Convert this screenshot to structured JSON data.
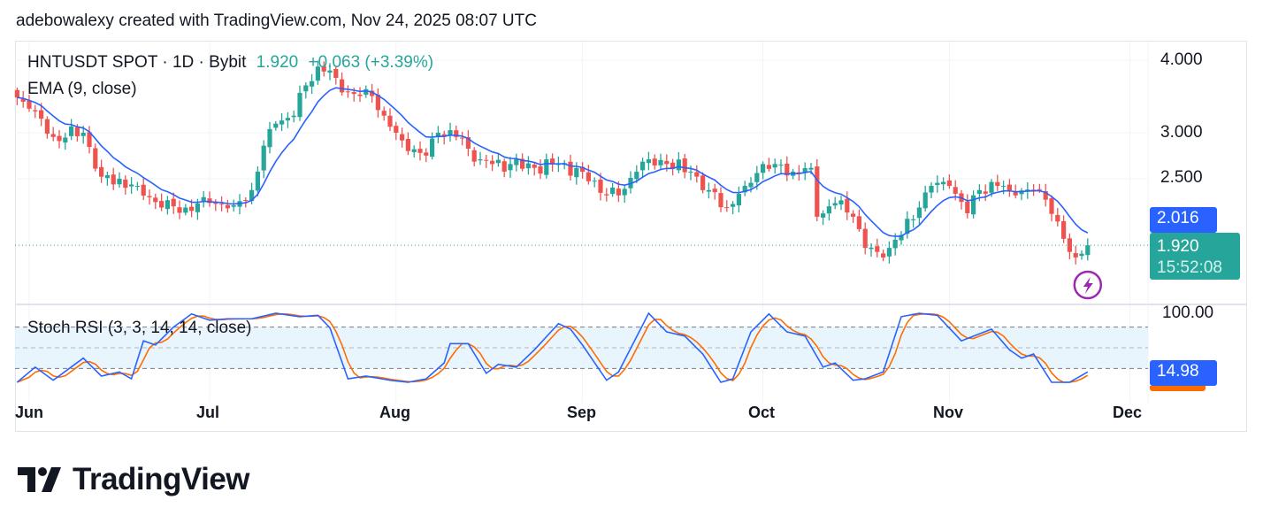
{
  "header": {
    "credit": "adebowalexy created with TradingView.com, Nov 24, 2025 08:07 UTC"
  },
  "legend": {
    "symbol": "HNTUSDT SPOT · 1D · Bybit",
    "price": "1.920",
    "change": "+0.063 (+3.39%)",
    "ema": "EMA (9, close)",
    "stoch": "Stoch RSI (3, 3, 14, 14, close)"
  },
  "price_axis": {
    "ticks": [
      "4.000",
      "3.000",
      "2.500"
    ],
    "ema_tag": "2.016",
    "last_price_tag": "1.920",
    "countdown": "15:52:08"
  },
  "stoch_axis": {
    "ticks": [
      "100.00"
    ],
    "k_tag": "14.98"
  },
  "time_axis": [
    "Jun",
    "Jul",
    "Aug",
    "Sep",
    "Oct",
    "Nov",
    "Dec"
  ],
  "colors": {
    "up": "#26a69a",
    "down": "#ef5350",
    "ema": "#2962ff",
    "stoch_k": "#2962ff",
    "stoch_d": "#ff6d00",
    "band": "#e3f2fd",
    "alert": "#9c27b0"
  },
  "logo": {
    "text": "TradingView"
  },
  "chart_data": {
    "type": "candlestick",
    "scale": "log",
    "ylim": [
      1.65,
      4.2
    ],
    "grid": true,
    "price_ticks": [
      4.0,
      3.0,
      2.5
    ],
    "last_price": 1.92,
    "ema_last": 2.016,
    "close_keypoints": [
      [
        "2025-05-30",
        3.45
      ],
      [
        "2025-06-01",
        3.3
      ],
      [
        "2025-06-05",
        2.95
      ],
      [
        "2025-06-10",
        3.0
      ],
      [
        "2025-06-13",
        2.52
      ],
      [
        "2025-06-19",
        2.43
      ],
      [
        "2025-06-23",
        2.23
      ],
      [
        "2025-06-27",
        2.23
      ],
      [
        "2025-07-01",
        2.27
      ],
      [
        "2025-07-05",
        2.25
      ],
      [
        "2025-07-08",
        2.39
      ],
      [
        "2025-07-10",
        2.85
      ],
      [
        "2025-07-12",
        3.11
      ],
      [
        "2025-07-15",
        3.21
      ],
      [
        "2025-07-17",
        3.62
      ],
      [
        "2025-07-19",
        3.9
      ],
      [
        "2025-07-21",
        3.84
      ],
      [
        "2025-07-23",
        3.52
      ],
      [
        "2025-07-26",
        3.47
      ],
      [
        "2025-07-28",
        3.47
      ],
      [
        "2025-07-30",
        3.21
      ],
      [
        "2025-08-01",
        3.0
      ],
      [
        "2025-08-03",
        2.79
      ],
      [
        "2025-08-06",
        2.74
      ],
      [
        "2025-08-08",
        3.0
      ],
      [
        "2025-08-11",
        2.95
      ],
      [
        "2025-08-15",
        2.7
      ],
      [
        "2025-08-17",
        2.65
      ],
      [
        "2025-08-20",
        2.65
      ],
      [
        "2025-08-24",
        2.61
      ],
      [
        "2025-08-28",
        2.65
      ],
      [
        "2025-09-01",
        2.57
      ],
      [
        "2025-09-05",
        2.34
      ],
      [
        "2025-09-07",
        2.34
      ],
      [
        "2025-09-10",
        2.57
      ],
      [
        "2025-09-12",
        2.7
      ],
      [
        "2025-09-15",
        2.65
      ],
      [
        "2025-09-19",
        2.57
      ],
      [
        "2025-09-22",
        2.39
      ],
      [
        "2025-09-25",
        2.23
      ],
      [
        "2025-09-28",
        2.43
      ],
      [
        "2025-10-01",
        2.65
      ],
      [
        "2025-10-03",
        2.65
      ],
      [
        "2025-10-06",
        2.57
      ],
      [
        "2025-10-09",
        2.61
      ],
      [
        "2025-10-10",
        2.15
      ],
      [
        "2025-10-13",
        2.27
      ],
      [
        "2025-10-16",
        2.15
      ],
      [
        "2025-10-18",
        1.9
      ],
      [
        "2025-10-20",
        1.87
      ],
      [
        "2025-10-22",
        1.9
      ],
      [
        "2025-10-24",
        2.0
      ],
      [
        "2025-10-27",
        2.23
      ],
      [
        "2025-10-29",
        2.43
      ],
      [
        "2025-11-01",
        2.43
      ],
      [
        "2025-11-04",
        2.18
      ],
      [
        "2025-11-06",
        2.39
      ],
      [
        "2025-11-09",
        2.43
      ],
      [
        "2025-11-12",
        2.34
      ],
      [
        "2025-11-15",
        2.39
      ],
      [
        "2025-11-17",
        2.3
      ],
      [
        "2025-11-19",
        2.11
      ],
      [
        "2025-11-20",
        1.97
      ],
      [
        "2025-11-21",
        1.87
      ],
      [
        "2025-11-22",
        1.83
      ],
      [
        "2025-11-23",
        1.857
      ],
      [
        "2025-11-24",
        1.92
      ]
    ],
    "stoch": {
      "ylim": [
        0,
        100
      ],
      "bands": [
        80,
        50,
        20
      ],
      "k_last": 14.98,
      "k_keypoints": [
        [
          "2025-05-30",
          0
        ],
        [
          "2025-06-02",
          22
        ],
        [
          "2025-06-05",
          3
        ],
        [
          "2025-06-10",
          35
        ],
        [
          "2025-06-13",
          9
        ],
        [
          "2025-06-16",
          15
        ],
        [
          "2025-06-18",
          5
        ],
        [
          "2025-06-20",
          60
        ],
        [
          "2025-06-22",
          54
        ],
        [
          "2025-06-25",
          80
        ],
        [
          "2025-06-28",
          99
        ],
        [
          "2025-07-01",
          90
        ],
        [
          "2025-07-04",
          92
        ],
        [
          "2025-07-08",
          92
        ],
        [
          "2025-07-12",
          100
        ],
        [
          "2025-07-16",
          95
        ],
        [
          "2025-07-19",
          97
        ],
        [
          "2025-07-21",
          79
        ],
        [
          "2025-07-24",
          5
        ],
        [
          "2025-07-27",
          9
        ],
        [
          "2025-07-31",
          3
        ],
        [
          "2025-08-03",
          0
        ],
        [
          "2025-08-06",
          5
        ],
        [
          "2025-08-09",
          28
        ],
        [
          "2025-08-10",
          56
        ],
        [
          "2025-08-13",
          56
        ],
        [
          "2025-08-16",
          13
        ],
        [
          "2025-08-18",
          26
        ],
        [
          "2025-08-21",
          22
        ],
        [
          "2025-08-24",
          47
        ],
        [
          "2025-08-28",
          85
        ],
        [
          "2025-08-30",
          77
        ],
        [
          "2025-09-01",
          54
        ],
        [
          "2025-09-05",
          3
        ],
        [
          "2025-09-07",
          15
        ],
        [
          "2025-09-12",
          100
        ],
        [
          "2025-09-15",
          73
        ],
        [
          "2025-09-18",
          67
        ],
        [
          "2025-09-21",
          41
        ],
        [
          "2025-09-24",
          0
        ],
        [
          "2025-09-26",
          5
        ],
        [
          "2025-09-29",
          73
        ],
        [
          "2025-10-02",
          99
        ],
        [
          "2025-10-05",
          73
        ],
        [
          "2025-10-08",
          67
        ],
        [
          "2025-10-11",
          22
        ],
        [
          "2025-10-13",
          28
        ],
        [
          "2025-10-16",
          3
        ],
        [
          "2025-10-18",
          5
        ],
        [
          "2025-10-21",
          15
        ],
        [
          "2025-10-24",
          95
        ],
        [
          "2025-10-27",
          100
        ],
        [
          "2025-10-30",
          97
        ],
        [
          "2025-11-03",
          60
        ],
        [
          "2025-11-08",
          77
        ],
        [
          "2025-11-11",
          47
        ],
        [
          "2025-11-13",
          35
        ],
        [
          "2025-11-15",
          41
        ],
        [
          "2025-11-18",
          0
        ],
        [
          "2025-11-21",
          0
        ],
        [
          "2025-11-24",
          14.98
        ]
      ]
    },
    "time_ticks": [
      "2025-06-01",
      "2025-07-01",
      "2025-08-01",
      "2025-09-01",
      "2025-10-01",
      "2025-11-01",
      "2025-12-01"
    ]
  }
}
